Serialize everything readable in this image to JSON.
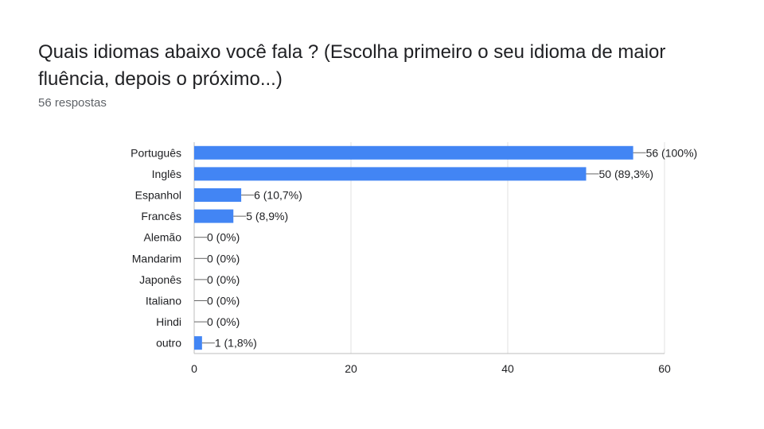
{
  "question": {
    "title": "Quais idiomas abaixo você fala ? (Escolha primeiro o seu idioma de maior fluência, depois o próximo...)",
    "responses_label": "56 respostas"
  },
  "colors": {
    "bar": "#4285f4",
    "grid": "#e0e0e0",
    "axis": "#bdbdbd",
    "text": "#202124"
  },
  "chart_data": {
    "type": "bar",
    "orientation": "horizontal",
    "categories": [
      "Português",
      "Inglês",
      "Espanhol",
      "Francês",
      "Alemão",
      "Mandarim",
      "Japonês",
      "Italiano",
      "Hindi",
      "outro"
    ],
    "values": [
      56,
      50,
      6,
      5,
      0,
      0,
      0,
      0,
      0,
      1
    ],
    "data_labels": [
      "56 (100%)",
      "50 (89,3%)",
      "6 (10,7%)",
      "5 (8,9%)",
      "0 (0%)",
      "0 (0%)",
      "0 (0%)",
      "0 (0%)",
      "0 (0%)",
      "1 (1,8%)"
    ],
    "xlim": [
      0,
      60
    ],
    "xticks": [
      0,
      20,
      40,
      60
    ],
    "grid": true,
    "xlabel": "",
    "ylabel": ""
  }
}
